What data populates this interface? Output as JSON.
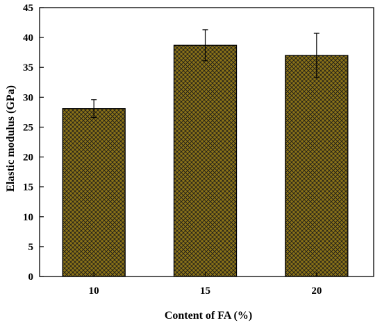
{
  "chart_data": {
    "type": "bar",
    "categories": [
      "10",
      "15",
      "20"
    ],
    "values": [
      28.1,
      38.7,
      37.0
    ],
    "errors": [
      1.5,
      2.6,
      3.7
    ],
    "xlabel": "Content of FA (%)",
    "ylabel": "Elastic modulus (GPa)",
    "ylim": [
      0,
      45
    ],
    "yticks": [
      "0",
      "5",
      "10",
      "15",
      "20",
      "25",
      "30",
      "35",
      "40",
      "45"
    ],
    "grid": false,
    "bar_color": "#8a7217",
    "hatch_color": "#1a1a1a",
    "hatch": "crosshatch",
    "error_bars": true
  }
}
